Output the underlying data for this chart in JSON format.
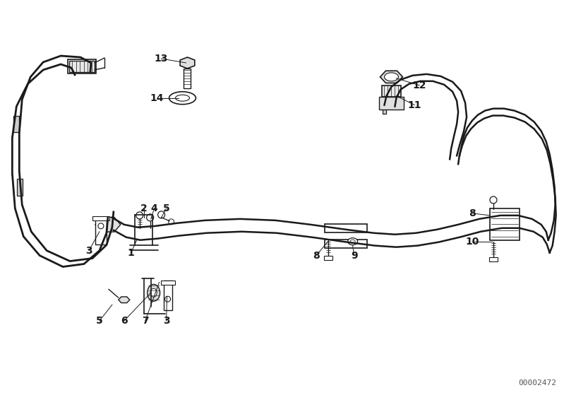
{
  "background_color": "#ffffff",
  "diagram_id": "00002472",
  "figure_width": 7.99,
  "figure_height": 5.59,
  "dpi": 100,
  "line_color": "#1a1a1a",
  "text_color": "#1a1a1a",
  "font_size": 10,
  "pipe_lw": 2.0,
  "detail_lw": 1.2
}
